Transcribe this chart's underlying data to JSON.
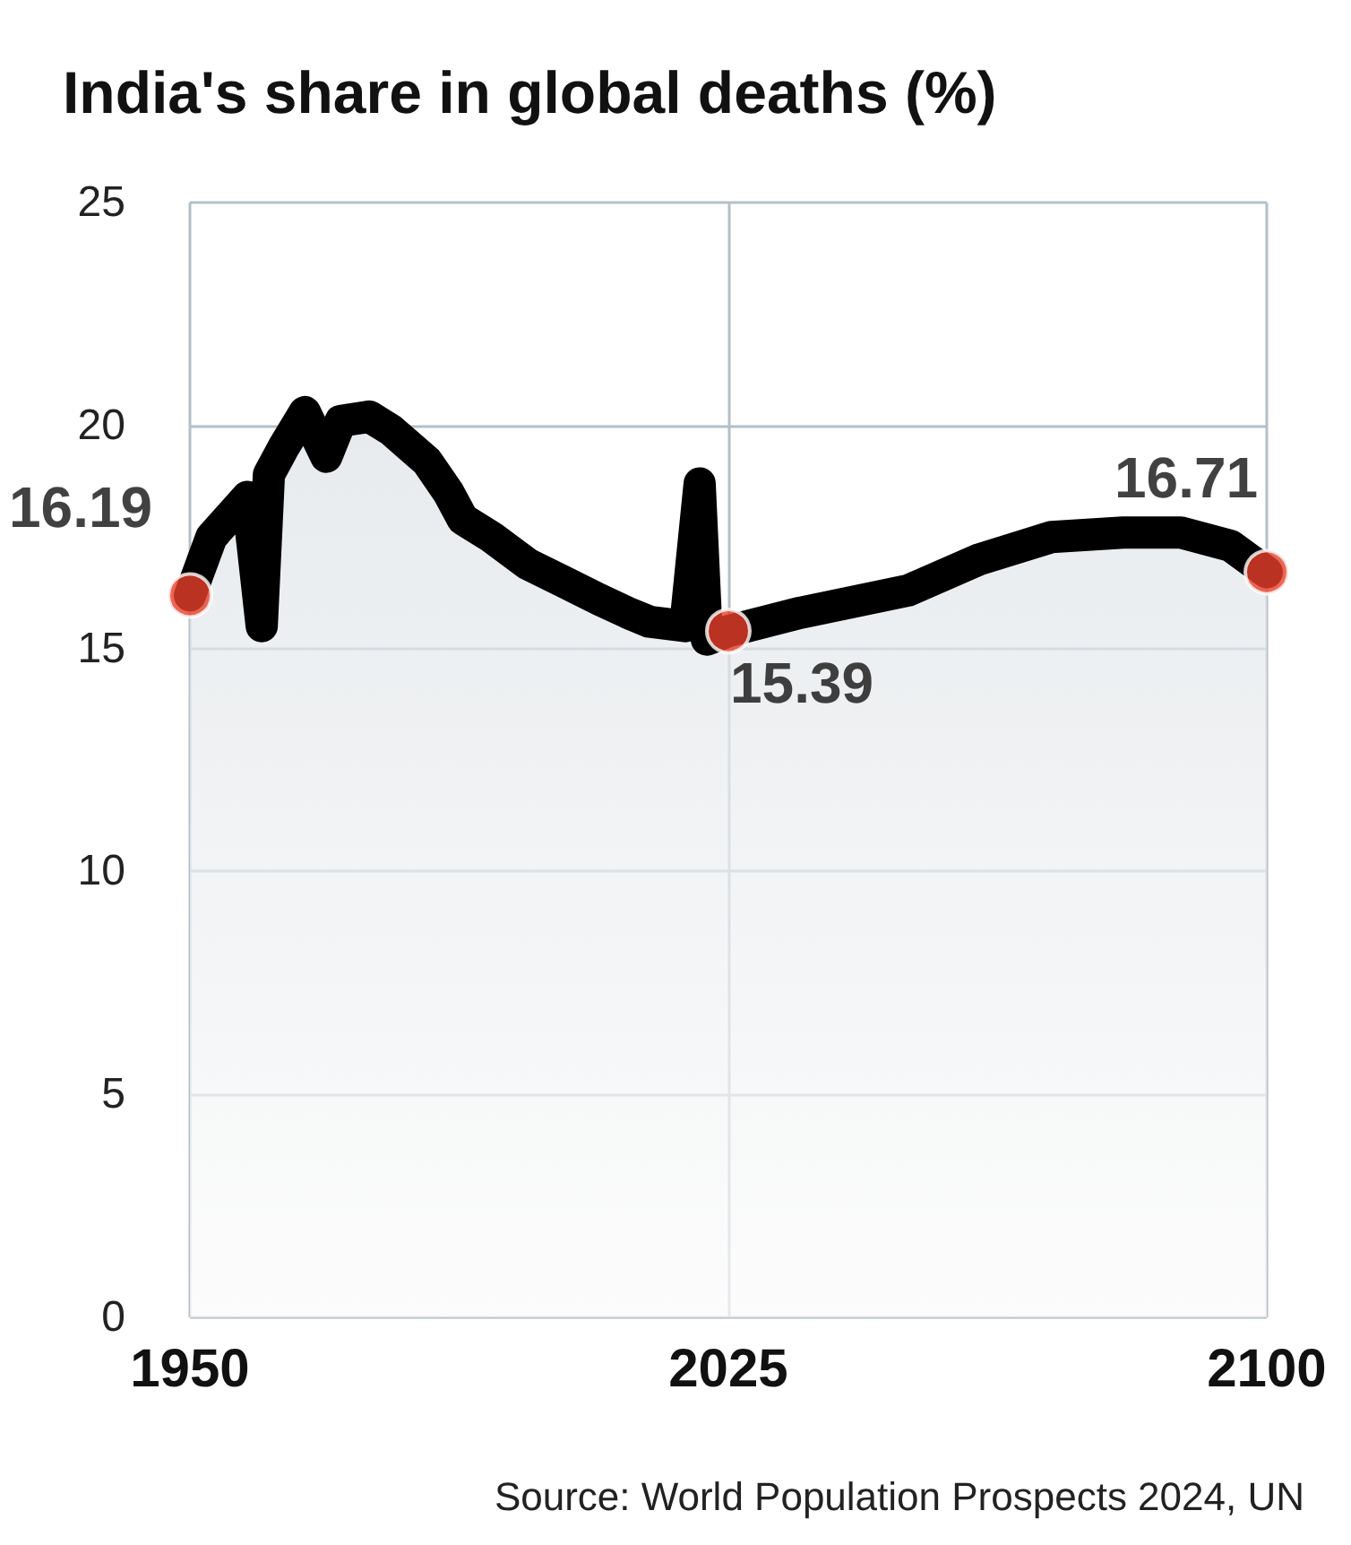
{
  "chart_data": {
    "type": "area",
    "title": "India's share in global deaths (%)",
    "annotations": [
      "Source: World Population Prospects 2024, UN"
    ],
    "xlim": [
      1950,
      2100
    ],
    "xticks": [
      1950,
      2025,
      2100
    ],
    "ylim": [
      0,
      25
    ],
    "yticks": [
      0,
      5,
      10,
      15,
      20,
      25
    ],
    "grid": true,
    "line_style": "solid",
    "series": [
      {
        "color": "#000000",
        "x": [
          1950,
          1953,
          1958,
          1960,
          1961,
          1963,
          1966,
          1969,
          1971,
          1975,
          1978,
          1983,
          1986,
          1988,
          1992,
          1997,
          2002,
          2007,
          2011,
          2014,
          2019,
          2021,
          2022,
          2025,
          2035,
          2050,
          2060,
          2070,
          2080,
          2088,
          2095,
          2100
        ],
        "values": [
          16.19,
          17.5,
          18.4,
          15.5,
          18.9,
          19.5,
          20.3,
          19.3,
          20.1,
          20.2,
          19.9,
          19.2,
          18.5,
          17.9,
          17.5,
          16.9,
          16.5,
          16.1,
          15.8,
          15.6,
          15.5,
          18.7,
          15.2,
          15.39,
          15.8,
          16.3,
          17.0,
          17.5,
          17.6,
          17.6,
          17.3,
          16.71
        ]
      },
      {
        "type": "scatter",
        "marker": "circle",
        "color": "#e8402a",
        "x": [
          1950,
          2025,
          2100
        ],
        "values": [
          16.19,
          15.39,
          16.71
        ],
        "value_labels": [
          "16.19",
          "15.39",
          "16.71"
        ]
      }
    ]
  }
}
